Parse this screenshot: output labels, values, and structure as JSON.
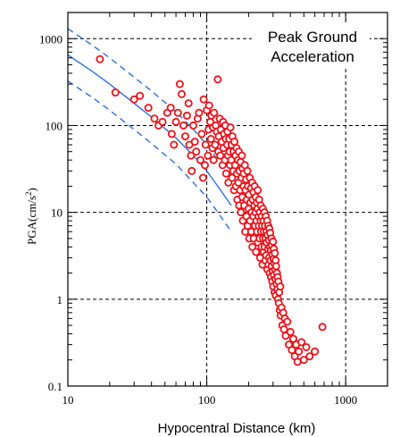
{
  "chart_data": {
    "type": "scatter",
    "title": "Peak Ground Acceleration",
    "title_lines": [
      "Peak Ground",
      "Acceleration"
    ],
    "xlabel": "Hypocentral Distance  (km)",
    "ylabel": "PGA(cm/s",
    "ylabel_sup": "2",
    "ylabel_close": ")",
    "x_scale": "log",
    "y_scale": "log",
    "xlim": [
      10,
      2000
    ],
    "ylim": [
      0.1,
      2000
    ],
    "x_ticks": [
      10,
      100,
      1000
    ],
    "x_tick_labels": [
      "10",
      "100",
      "1000"
    ],
    "y_ticks": [
      0.1,
      1,
      10,
      100,
      1000
    ],
    "y_tick_labels": [
      "0.1",
      "1",
      "10",
      "100",
      "1000"
    ],
    "grid": "dashed at decades",
    "legend": "none",
    "colors": {
      "points": "#e8141c",
      "curves": "#2d6fd8",
      "axes": "#000000"
    },
    "series": [
      {
        "kind": "observed-points",
        "style": "red open circles",
        "points": [
          [
            17,
            580
          ],
          [
            22,
            240
          ],
          [
            30,
            200
          ],
          [
            33,
            220
          ],
          [
            38,
            160
          ],
          [
            42,
            120
          ],
          [
            45,
            100
          ],
          [
            48,
            110
          ],
          [
            52,
            140
          ],
          [
            55,
            160
          ],
          [
            56,
            80
          ],
          [
            58,
            60
          ],
          [
            60,
            110
          ],
          [
            62,
            140
          ],
          [
            64,
            300
          ],
          [
            66,
            230
          ],
          [
            68,
            100
          ],
          [
            70,
            75
          ],
          [
            72,
            130
          ],
          [
            74,
            180
          ],
          [
            75,
            60
          ],
          [
            77,
            45
          ],
          [
            78,
            30
          ],
          [
            80,
            100
          ],
          [
            82,
            65
          ],
          [
            84,
            50
          ],
          [
            86,
            120
          ],
          [
            88,
            140
          ],
          [
            90,
            40
          ],
          [
            92,
            80
          ],
          [
            94,
            25
          ],
          [
            95,
            200
          ],
          [
            97,
            35
          ],
          [
            98,
            60
          ],
          [
            100,
            150
          ],
          [
            102,
            45
          ],
          [
            103,
            90
          ],
          [
            104,
            170
          ],
          [
            106,
            110
          ],
          [
            107,
            70
          ],
          [
            108,
            130
          ],
          [
            110,
            55
          ],
          [
            111,
            95
          ],
          [
            112,
            40
          ],
          [
            113,
            140
          ],
          [
            115,
            60
          ],
          [
            116,
            100
          ],
          [
            118,
            85
          ],
          [
            120,
            340
          ],
          [
            121,
            50
          ],
          [
            122,
            75
          ],
          [
            124,
            120
          ],
          [
            125,
            45
          ],
          [
            126,
            90
          ],
          [
            128,
            65
          ],
          [
            130,
            35
          ],
          [
            131,
            110
          ],
          [
            132,
            55
          ],
          [
            133,
            80
          ],
          [
            135,
            40
          ],
          [
            136,
            100
          ],
          [
            137,
            70
          ],
          [
            138,
            28
          ],
          [
            140,
            60
          ],
          [
            141,
            85
          ],
          [
            142,
            45
          ],
          [
            143,
            22
          ],
          [
            145,
            70
          ],
          [
            146,
            50
          ],
          [
            147,
            35
          ],
          [
            148,
            95
          ],
          [
            150,
            40
          ],
          [
            151,
            60
          ],
          [
            152,
            25
          ],
          [
            153,
            75
          ],
          [
            155,
            30
          ],
          [
            156,
            50
          ],
          [
            157,
            18
          ],
          [
            158,
            65
          ],
          [
            160,
            35
          ],
          [
            161,
            45
          ],
          [
            162,
            20
          ],
          [
            164,
            55
          ],
          [
            165,
            28
          ],
          [
            166,
            14
          ],
          [
            168,
            40
          ],
          [
            169,
            22
          ],
          [
            170,
            50
          ],
          [
            171,
            12
          ],
          [
            172,
            30
          ],
          [
            174,
            18
          ],
          [
            175,
            38
          ],
          [
            176,
            10
          ],
          [
            178,
            25
          ],
          [
            179,
            45
          ],
          [
            180,
            15
          ],
          [
            181,
            32
          ],
          [
            182,
            8
          ],
          [
            184,
            20
          ],
          [
            185,
            28
          ],
          [
            186,
            12
          ],
          [
            188,
            35
          ],
          [
            189,
            6
          ],
          [
            190,
            18
          ],
          [
            192,
            24
          ],
          [
            193,
            9
          ],
          [
            194,
            14
          ],
          [
            196,
            30
          ],
          [
            197,
            7
          ],
          [
            198,
            20
          ],
          [
            200,
            11
          ],
          [
            201,
            16
          ],
          [
            202,
            5
          ],
          [
            204,
            25
          ],
          [
            205,
            8
          ],
          [
            206,
            13
          ],
          [
            208,
            19
          ],
          [
            209,
            6
          ],
          [
            210,
            10
          ],
          [
            212,
            22
          ],
          [
            213,
            4
          ],
          [
            214,
            14
          ],
          [
            216,
            9
          ],
          [
            217,
            17
          ],
          [
            218,
            5
          ],
          [
            220,
            12
          ],
          [
            221,
            20
          ],
          [
            222,
            7
          ],
          [
            224,
            10
          ],
          [
            225,
            15
          ],
          [
            226,
            3.5
          ],
          [
            228,
            8
          ],
          [
            229,
            13
          ],
          [
            230,
            6
          ],
          [
            232,
            11
          ],
          [
            233,
            18
          ],
          [
            234,
            4.5
          ],
          [
            236,
            9
          ],
          [
            237,
            7
          ],
          [
            238,
            14
          ],
          [
            240,
            5
          ],
          [
            241,
            10
          ],
          [
            242,
            3
          ],
          [
            244,
            8
          ],
          [
            245,
            12
          ],
          [
            246,
            6
          ],
          [
            248,
            4
          ],
          [
            249,
            9
          ],
          [
            250,
            7
          ],
          [
            252,
            2.5
          ],
          [
            253,
            11
          ],
          [
            254,
            5
          ],
          [
            256,
            8
          ],
          [
            257,
            3.5
          ],
          [
            258,
            6
          ],
          [
            260,
            10
          ],
          [
            261,
            4
          ],
          [
            262,
            7
          ],
          [
            264,
            2.8
          ],
          [
            265,
            5
          ],
          [
            266,
            9
          ],
          [
            268,
            3.2
          ],
          [
            269,
            6
          ],
          [
            270,
            4.5
          ],
          [
            272,
            8
          ],
          [
            273,
            2.2
          ],
          [
            274,
            5.5
          ],
          [
            276,
            3.8
          ],
          [
            277,
            7
          ],
          [
            278,
            2.5
          ],
          [
            280,
            4.8
          ],
          [
            281,
            3
          ],
          [
            282,
            6.5
          ],
          [
            284,
            2
          ],
          [
            285,
            4
          ],
          [
            286,
            5.8
          ],
          [
            288,
            2.8
          ],
          [
            289,
            3.6
          ],
          [
            290,
            1.8
          ],
          [
            292,
            5
          ],
          [
            293,
            2.4
          ],
          [
            294,
            4.2
          ],
          [
            296,
            1.6
          ],
          [
            297,
            3.3
          ],
          [
            298,
            2.1
          ],
          [
            300,
            4.6
          ],
          [
            301,
            1.4
          ],
          [
            302,
            2.9
          ],
          [
            304,
            3.8
          ],
          [
            305,
            1.9
          ],
          [
            306,
            2.6
          ],
          [
            308,
            1.2
          ],
          [
            309,
            3.4
          ],
          [
            310,
            2.2
          ],
          [
            312,
            1.7
          ],
          [
            313,
            2.8
          ],
          [
            314,
            1.1
          ],
          [
            316,
            2.4
          ],
          [
            318,
            1.5
          ],
          [
            320,
            2
          ],
          [
            322,
            1.3
          ],
          [
            324,
            1.8
          ],
          [
            326,
            1
          ],
          [
            328,
            1.6
          ],
          [
            330,
            0.9
          ],
          [
            332,
            1.2
          ],
          [
            335,
            0.75
          ],
          [
            338,
            1.4
          ],
          [
            340,
            0.65
          ],
          [
            345,
            0.8
          ],
          [
            350,
            0.5
          ],
          [
            355,
            0.7
          ],
          [
            360,
            0.45
          ],
          [
            365,
            0.6
          ],
          [
            370,
            0.38
          ],
          [
            380,
            0.55
          ],
          [
            390,
            0.3
          ],
          [
            400,
            0.42
          ],
          [
            410,
            0.26
          ],
          [
            420,
            0.35
          ],
          [
            430,
            0.22
          ],
          [
            440,
            0.3
          ],
          [
            450,
            0.19
          ],
          [
            460,
            0.25
          ],
          [
            480,
            0.32
          ],
          [
            500,
            0.2
          ],
          [
            520,
            0.28
          ],
          [
            550,
            0.22
          ],
          [
            600,
            0.25
          ],
          [
            680,
            0.48
          ]
        ]
      },
      {
        "kind": "median-curve",
        "style": "blue solid line",
        "x": [
          10,
          15,
          20,
          30,
          40,
          60,
          80,
          100,
          120,
          150
        ],
        "y": [
          650,
          420,
          300,
          180,
          125,
          72,
          45,
          30,
          20,
          12
        ]
      },
      {
        "kind": "upper-bound-curve",
        "style": "blue dashed line",
        "x": [
          10,
          15,
          20,
          30,
          40,
          60,
          80,
          100,
          120,
          150
        ],
        "y": [
          1300,
          840,
          600,
          360,
          250,
          144,
          90,
          60,
          40,
          24
        ]
      },
      {
        "kind": "lower-bound-curve",
        "style": "blue dashed line",
        "x": [
          10,
          15,
          20,
          30,
          40,
          60,
          80,
          100,
          120,
          150
        ],
        "y": [
          325,
          210,
          150,
          90,
          62,
          36,
          22,
          15,
          10,
          6
        ]
      }
    ]
  }
}
